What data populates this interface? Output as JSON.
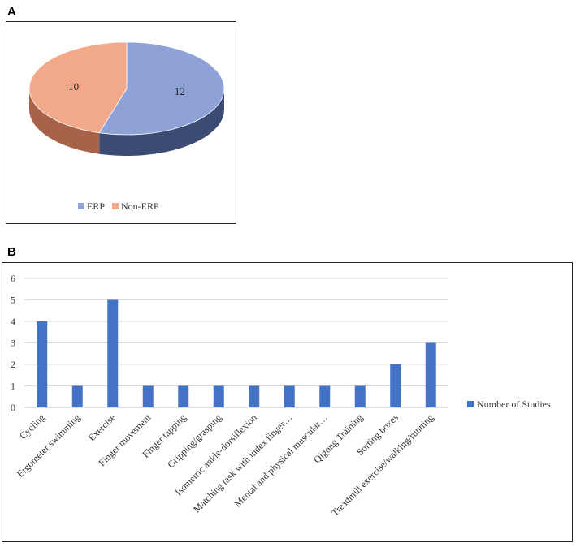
{
  "panels": {
    "a_label": "A",
    "b_label": "B"
  },
  "colors": {
    "erp_top": "#8fa2d8",
    "erp_side": "#3c4b73",
    "nonerp_top": "#f1a98a",
    "nonerp_side": "#a8624a",
    "bar": "#4472c4",
    "grid": "#d9d9d9",
    "axis": "#bfbfbf"
  },
  "chart_data": [
    {
      "type": "pie",
      "title": "",
      "labels": [
        "ERP",
        "Non-ERP"
      ],
      "values": [
        12,
        10
      ],
      "legend_position": "bottom",
      "style": "3d"
    },
    {
      "type": "bar",
      "title": "",
      "xlabel": "",
      "ylabel": "",
      "ylim": [
        0,
        6
      ],
      "yticks": [
        0,
        1,
        2,
        3,
        4,
        5,
        6
      ],
      "grid": true,
      "legend_position": "right",
      "categories": [
        "Cycling",
        "Ergometer swimming",
        "Exercise",
        "Finger movement",
        "Finger tapping",
        "Gripping/grasping",
        "Isometric ankle-dorsiflexion",
        "Matching task with index finger…",
        "Mental and physical muscular…",
        "Qigong Training",
        "Sorting boxes",
        "Treadmill exercise/walking/running"
      ],
      "series": [
        {
          "name": "Number of Studies",
          "values": [
            4,
            1,
            5,
            1,
            1,
            1,
            1,
            1,
            1,
            1,
            2,
            3
          ]
        }
      ]
    }
  ]
}
